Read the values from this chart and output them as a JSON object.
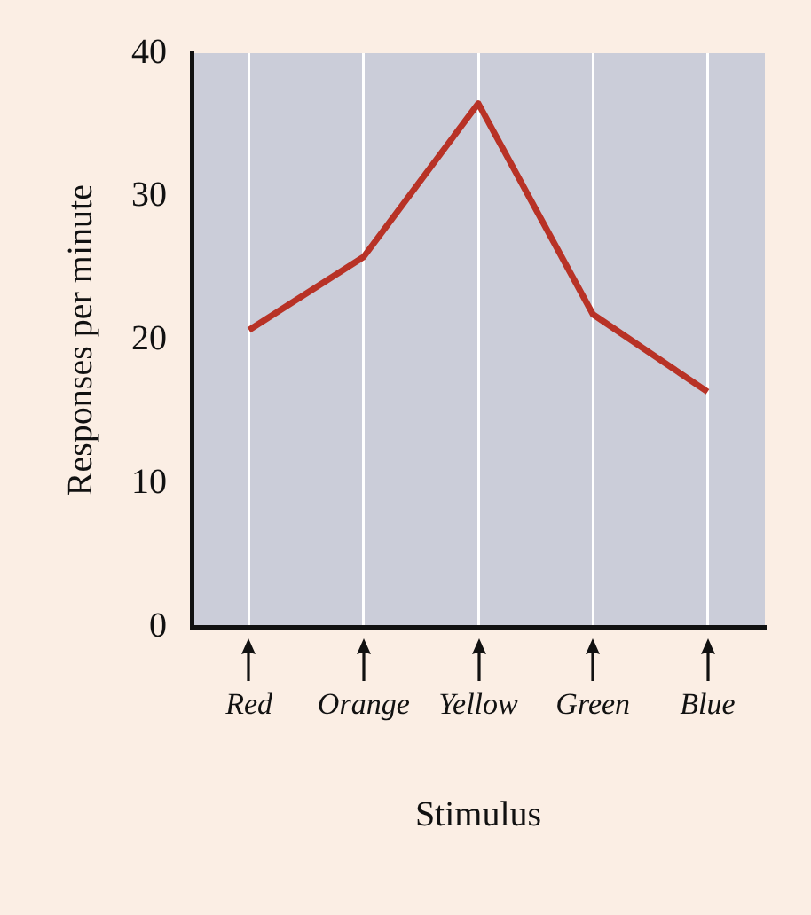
{
  "chart_data": {
    "type": "line",
    "xlabel": "Stimulus",
    "ylabel": "Responses per minute",
    "categories": [
      "Red",
      "Orange",
      "Yellow",
      "Green",
      "Blue"
    ],
    "series": [
      {
        "color": "#b83226",
        "values": [
          20.7,
          25.8,
          36.5,
          21.8,
          16.4
        ]
      }
    ],
    "ylim": [
      0,
      40
    ],
    "yticks": [
      0,
      10,
      20,
      30,
      40
    ],
    "grid": "x",
    "marker": "none",
    "line_style": "solid",
    "legend": false
  }
}
